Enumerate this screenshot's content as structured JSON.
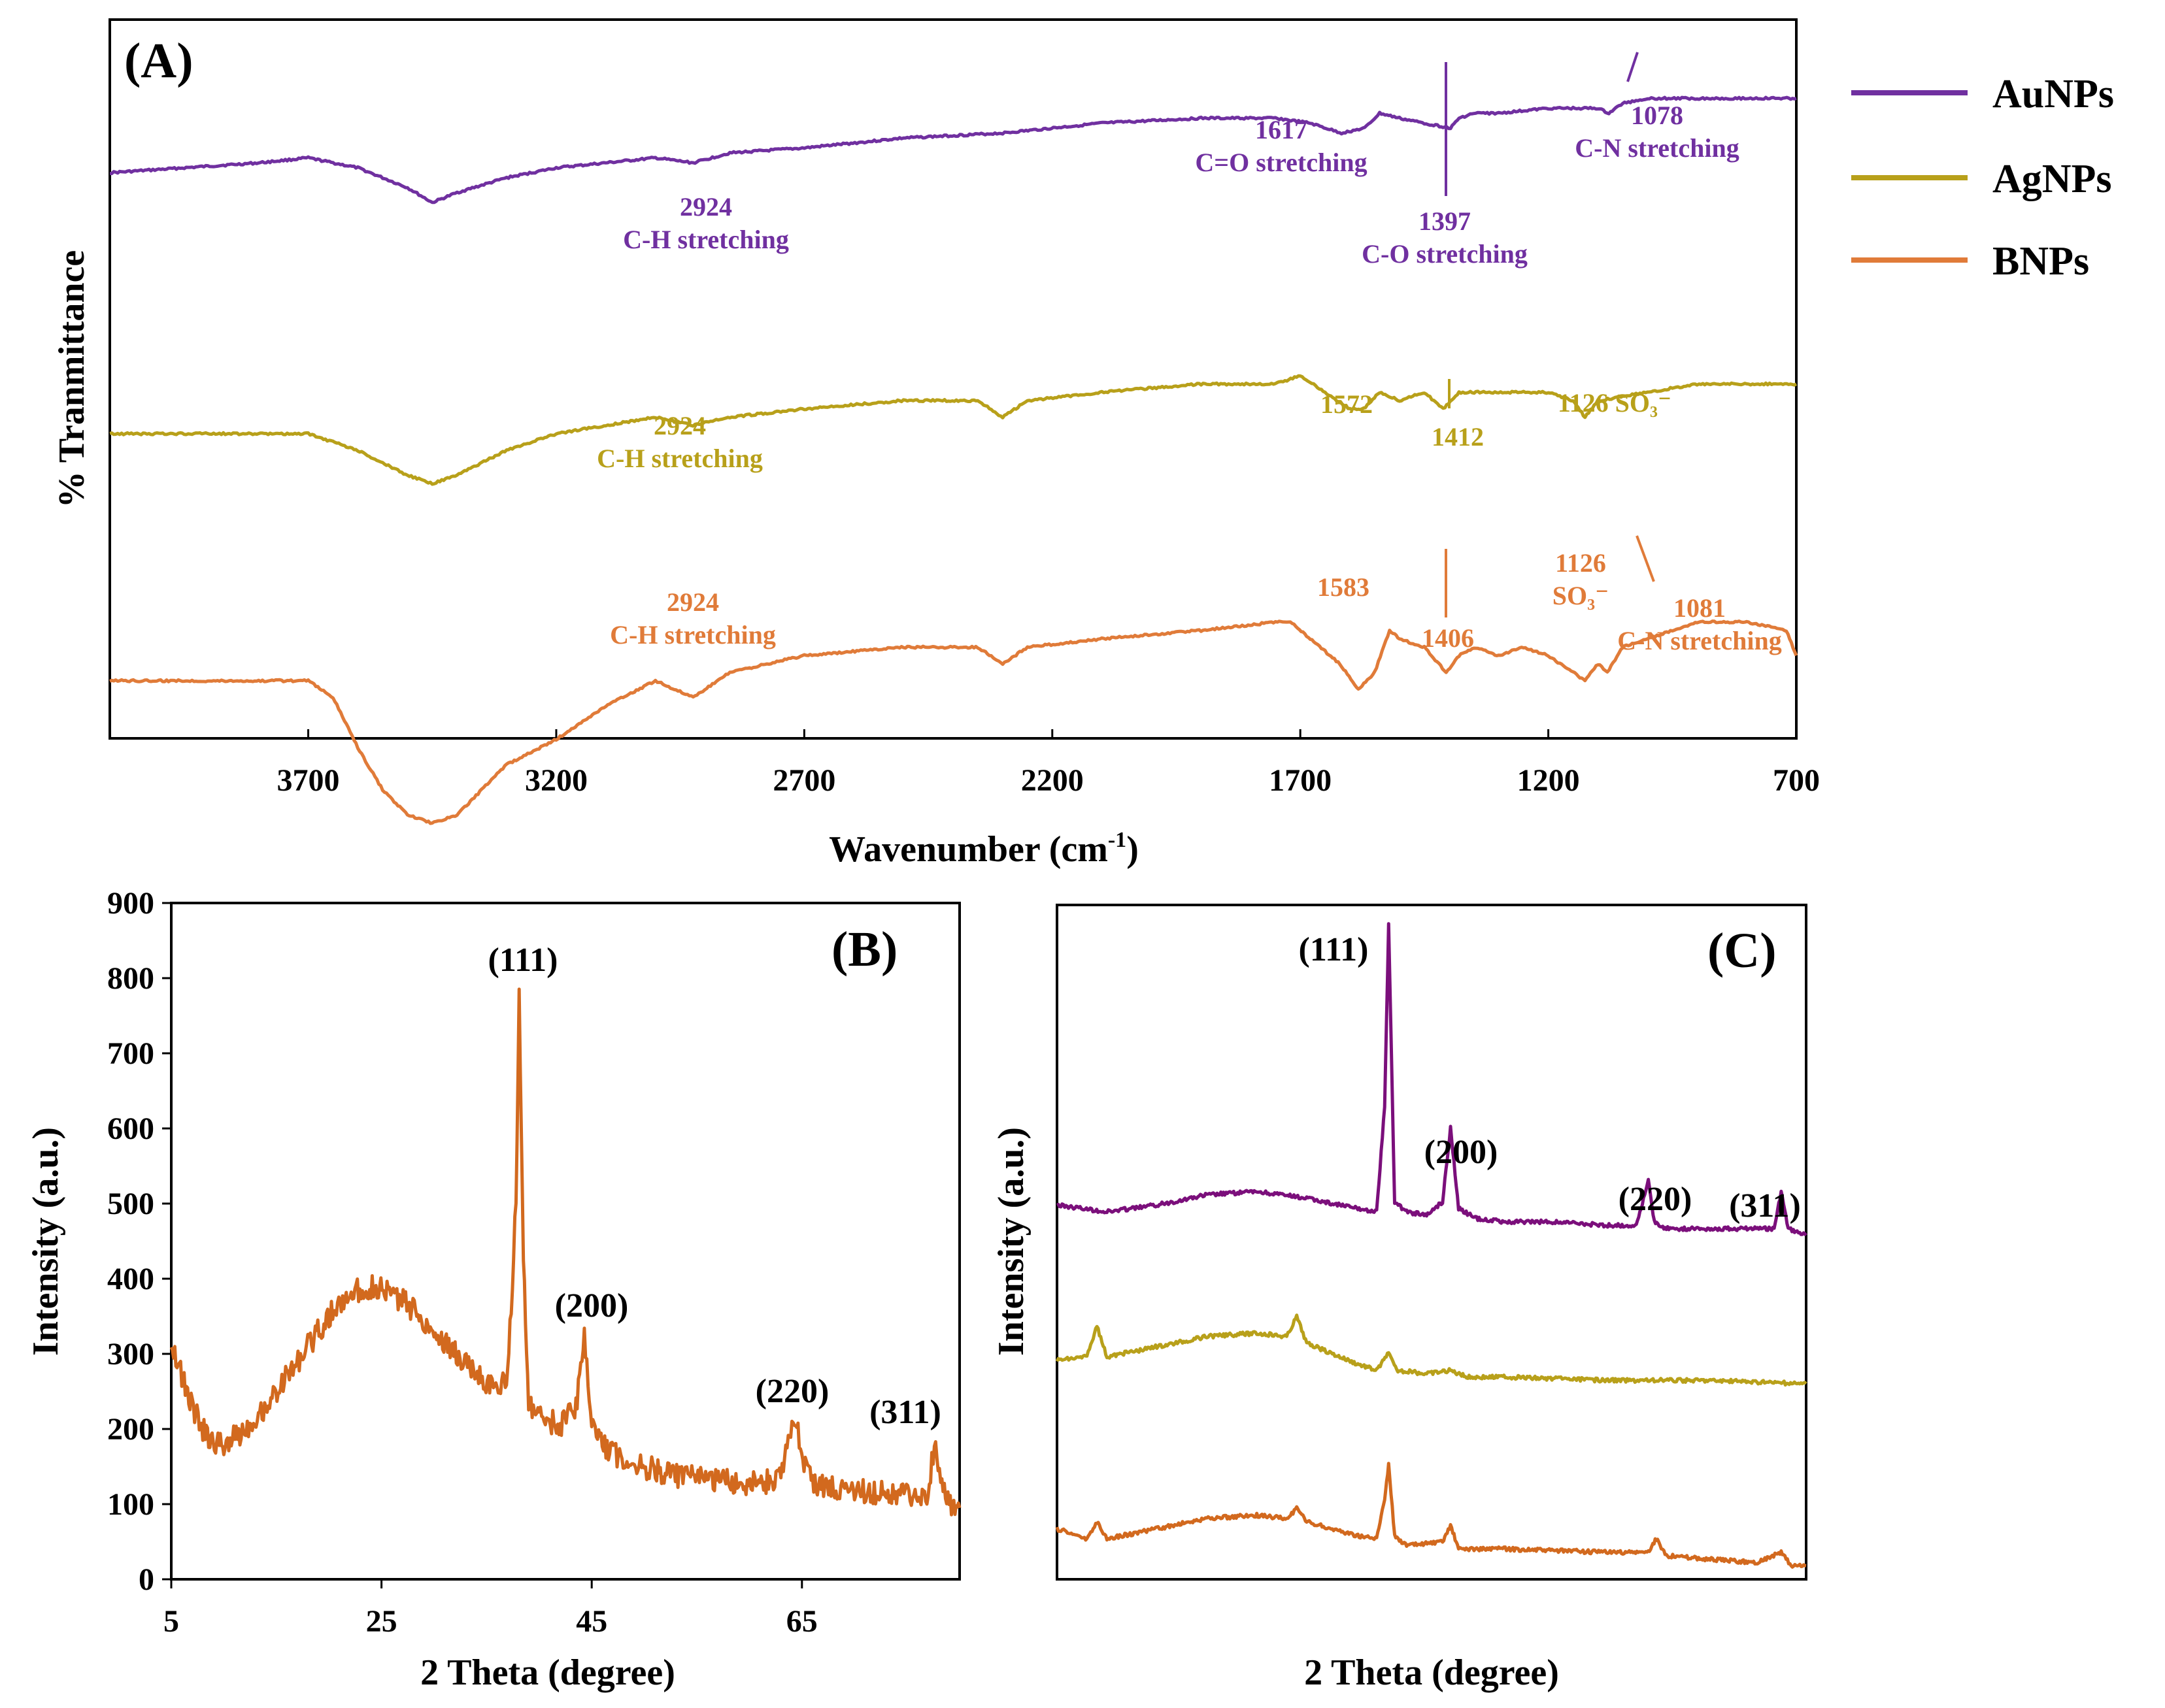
{
  "colors": {
    "AuNPs": "#7030a0",
    "AgNPs": "#b8a01a",
    "BNPs": "#e07b39",
    "BNPs_xrd": "#d2691e",
    "AuNPs_xrd": "#7b0f7b"
  },
  "legend": [
    "AuNPs",
    "AgNPs",
    "BNPs"
  ],
  "chart_data": [
    {
      "id": "A",
      "type": "line",
      "panel_label": "(A)",
      "title": "",
      "xlabel": "Wavenumber (cm",
      "xlabel_sup": "-1",
      "xlabel_close": ")",
      "ylabel": "% Tranmittance",
      "xlim": [
        4100,
        700
      ],
      "xticks": [
        3700,
        3200,
        2700,
        2200,
        1700,
        1200,
        700
      ],
      "series": [
        {
          "name": "AuNPs",
          "x": [
            4100,
            3800,
            3700,
            3600,
            3500,
            3450,
            3400,
            3300,
            3200,
            3100,
            3000,
            2924,
            2850,
            2700,
            2500,
            2300,
            2100,
            1900,
            1750,
            1680,
            1617,
            1570,
            1540,
            1500,
            1450,
            1397,
            1380,
            1350,
            1300,
            1200,
            1100,
            1078,
            1050,
            1000,
            900,
            800,
            700
          ],
          "y": [
            85,
            87,
            88,
            86,
            82,
            79,
            81,
            84,
            86,
            87,
            88,
            87,
            89,
            90,
            92,
            93,
            95,
            96,
            96,
            95,
            93,
            94,
            97,
            96,
            95,
            94,
            96,
            97,
            97,
            98,
            98,
            97,
            99,
            100,
            100,
            100,
            100
          ]
        },
        {
          "name": "AgNPs",
          "x": [
            4100,
            3800,
            3700,
            3600,
            3500,
            3450,
            3400,
            3300,
            3200,
            3100,
            3000,
            2924,
            2850,
            2700,
            2500,
            2350,
            2300,
            2250,
            2100,
            1900,
            1750,
            1700,
            1650,
            1600,
            1572,
            1540,
            1500,
            1450,
            1412,
            1380,
            1300,
            1200,
            1150,
            1126,
            1100,
            1000,
            900,
            800,
            700
          ],
          "y": [
            57,
            57,
            57,
            55,
            52,
            51,
            52,
            55,
            57,
            58,
            59,
            58,
            59,
            60,
            61,
            61,
            59,
            61,
            62,
            63,
            63,
            64,
            62,
            60,
            60,
            62,
            61,
            62,
            60,
            62,
            62,
            62,
            61,
            59,
            61,
            62,
            63,
            63,
            63
          ]
        },
        {
          "name": "BNPs",
          "x": [
            4100,
            3800,
            3700,
            3650,
            3600,
            3550,
            3500,
            3450,
            3400,
            3350,
            3300,
            3200,
            3100,
            3000,
            2924,
            2850,
            2700,
            2500,
            2350,
            2300,
            2250,
            2100,
            1900,
            1750,
            1720,
            1680,
            1620,
            1583,
            1550,
            1520,
            1500,
            1450,
            1406,
            1380,
            1350,
            1300,
            1250,
            1200,
            1150,
            1126,
            1100,
            1081,
            1050,
            1000,
            900,
            800,
            720,
            700
          ],
          "y": [
            30,
            30,
            30,
            28,
            22,
            17,
            14,
            13,
            14,
            17,
            20,
            23,
            27,
            30,
            28,
            31,
            33,
            34,
            34,
            32,
            34,
            35,
            36,
            37,
            37,
            35,
            32,
            29,
            31,
            36,
            35,
            34,
            31,
            33,
            34,
            33,
            34,
            33,
            31,
            30,
            32,
            31,
            34,
            35,
            37,
            37,
            36,
            33
          ]
        }
      ],
      "annotations": [
        {
          "series": "AuNPs",
          "lines": [
            "2924",
            "C-H stretching"
          ]
        },
        {
          "series": "AuNPs",
          "lines": [
            "1617",
            "C=O stretching"
          ]
        },
        {
          "series": "AuNPs",
          "lines": [
            "1397",
            "C-O stretching"
          ]
        },
        {
          "series": "AuNPs",
          "lines": [
            "1078",
            "C-N stretching"
          ]
        },
        {
          "series": "AgNPs",
          "lines": [
            "2924",
            "C-H stretching"
          ]
        },
        {
          "series": "AgNPs",
          "lines": [
            "1572"
          ]
        },
        {
          "series": "AgNPs",
          "lines": [
            "1412"
          ]
        },
        {
          "series": "AgNPs",
          "lines": [
            "1126 SO₃⁻"
          ]
        },
        {
          "series": "BNPs",
          "lines": [
            "2924",
            "C-H stretching"
          ]
        },
        {
          "series": "BNPs",
          "lines": [
            "1583"
          ]
        },
        {
          "series": "BNPs",
          "lines": [
            "1406"
          ]
        },
        {
          "series": "BNPs",
          "lines": [
            "1126",
            "SO₃⁻"
          ]
        },
        {
          "series": "BNPs",
          "lines": [
            "1081",
            "C-N stretching"
          ]
        }
      ]
    },
    {
      "id": "B",
      "type": "line",
      "panel_label": "(B)",
      "title": "",
      "xlabel": "2 Theta (degree)",
      "ylabel": "Intensity (a.u.)",
      "xlim": [
        5,
        80
      ],
      "ylim": [
        0,
        900
      ],
      "xticks": [
        5,
        25,
        45,
        65
      ],
      "yticks": [
        0,
        100,
        200,
        300,
        400,
        500,
        600,
        700,
        800,
        900
      ],
      "series": [
        {
          "name": "BNPs",
          "x": [
            5,
            6,
            7,
            8,
            9,
            10,
            12,
            14,
            16,
            18,
            20,
            22,
            24,
            26,
            28,
            30,
            32,
            34,
            36,
            37,
            37.8,
            38.1,
            38.5,
            39,
            40,
            42,
            43.5,
            44.3,
            45,
            46,
            48,
            50,
            52,
            55,
            58,
            61,
            63,
            64.4,
            65.2,
            66,
            68,
            70,
            72,
            74,
            76,
            77,
            77.6,
            78.2,
            79,
            80
          ],
          "y": [
            320,
            270,
            230,
            200,
            180,
            180,
            200,
            230,
            270,
            310,
            350,
            380,
            390,
            380,
            360,
            330,
            300,
            275,
            250,
            270,
            500,
            785,
            420,
            230,
            215,
            205,
            230,
            320,
            210,
            180,
            160,
            150,
            140,
            135,
            130,
            128,
            135,
            220,
            150,
            130,
            120,
            118,
            115,
            113,
            112,
            115,
            180,
            120,
            100,
            95
          ]
        }
      ],
      "peaks": [
        "(111)",
        "(200)",
        "(220)",
        "(311)"
      ]
    },
    {
      "id": "C",
      "type": "line",
      "panel_label": "(C)",
      "title": "",
      "xlabel": "2 Theta (degree)",
      "ylabel": "Intensity (a.u.)",
      "xlim": [
        5,
        80
      ],
      "series": [
        {
          "name": "AuNPs",
          "x": [
            5,
            10,
            15,
            20,
            25,
            30,
            35,
            37,
            37.8,
            38.2,
            38.8,
            40,
            42,
            43.6,
            44.4,
            45.2,
            47,
            50,
            55,
            60,
            63,
            64.2,
            64.8,
            66,
            70,
            75,
            76.8,
            77.5,
            78.2,
            80
          ],
          "y": [
            0.555,
            0.545,
            0.555,
            0.57,
            0.575,
            0.565,
            0.55,
            0.545,
            0.7,
            0.97,
            0.56,
            0.545,
            0.54,
            0.56,
            0.67,
            0.55,
            0.535,
            0.53,
            0.53,
            0.525,
            0.525,
            0.59,
            0.53,
            0.52,
            0.52,
            0.52,
            0.52,
            0.575,
            0.52,
            0.51
          ]
        },
        {
          "name": "AgNPs",
          "x": [
            5,
            8,
            9,
            10,
            15,
            20,
            25,
            28,
            29,
            30,
            35,
            37,
            38.2,
            39,
            42,
            44.4,
            46,
            50,
            60,
            70,
            80
          ],
          "y": [
            0.325,
            0.33,
            0.375,
            0.33,
            0.345,
            0.36,
            0.365,
            0.36,
            0.39,
            0.35,
            0.32,
            0.31,
            0.335,
            0.31,
            0.305,
            0.31,
            0.3,
            0.3,
            0.295,
            0.295,
            0.29
          ]
        },
        {
          "name": "BNPs",
          "x": [
            5,
            8,
            9,
            10,
            15,
            20,
            25,
            28,
            29,
            30,
            35,
            37,
            37.8,
            38.2,
            38.8,
            40,
            43.6,
            44.4,
            45.2,
            50,
            60,
            64.2,
            65,
            66,
            70,
            75,
            77.5,
            78.5,
            80
          ],
          "y": [
            0.075,
            0.06,
            0.085,
            0.06,
            0.075,
            0.09,
            0.095,
            0.09,
            0.105,
            0.085,
            0.065,
            0.06,
            0.12,
            0.17,
            0.065,
            0.05,
            0.055,
            0.08,
            0.045,
            0.045,
            0.04,
            0.04,
            0.06,
            0.035,
            0.03,
            0.025,
            0.04,
            0.02,
            0.02
          ]
        }
      ],
      "peaks": [
        "(111)",
        "(200)",
        "(220)",
        "(311)"
      ]
    }
  ]
}
